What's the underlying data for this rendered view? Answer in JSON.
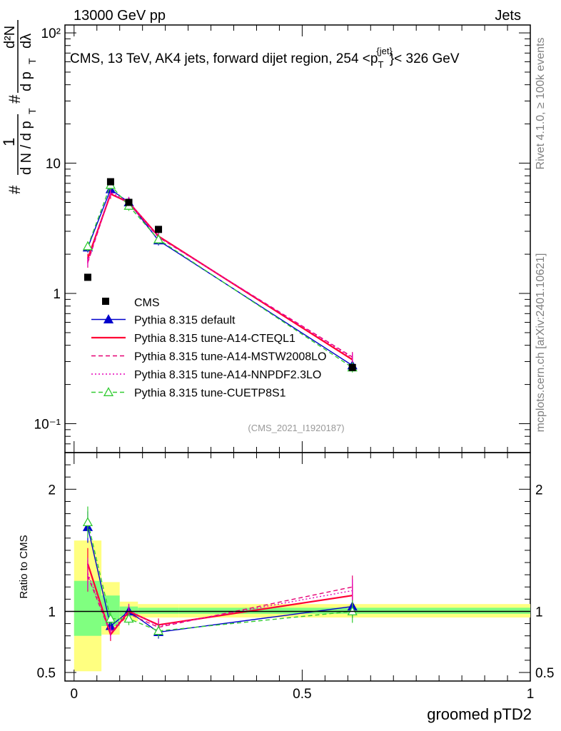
{
  "header": {
    "left": "13000 GeV pp",
    "right": "Jets"
  },
  "side_labels": {
    "rivet": "Rivet 4.1.0, ≥ 100k events",
    "mcplots": "mcplots.cern.ch [arXiv:2401.10621]"
  },
  "colors": {
    "cms": "#000000",
    "default": "#0000cc",
    "a14_cteq": "#ff0033",
    "a14_mstw": "#e60073",
    "a14_nnpdf": "#e600b8",
    "cuetp8s1": "#33cc33",
    "band_yellow": "#ffff80",
    "band_green": "#80ff80"
  },
  "chart_data": {
    "type": "line",
    "title": "CMS, 13 TeV, AK4 jets, forward dijet region, 254 <p_T^{jet}< 326 GeV",
    "title_parts": {
      "main": "CMS, 13 TeV, AK4 jets, forward dijet region, 254 <p",
      "sub": "T",
      "sup": "{jet}",
      "tail": "}< 326 GeV"
    },
    "ylabel_parts": {
      "hash1": "#",
      "one": "1",
      "dN_dpT": "d N / d p",
      "T": "T",
      "hash2": "#",
      "d2N": "d²N",
      "dpT_dlambda": "d p",
      "lambda": "dλ"
    },
    "xlabel": "groomed pTD2",
    "ratio_ylabel": "Ratio to CMS",
    "analysis_tag": "(CMS_2021_I1920187)",
    "xlim": [
      -0.02,
      1.0
    ],
    "ylim_log": [
      0.06,
      115
    ],
    "ratio_ylim": [
      0.43,
      2.3
    ],
    "x_ticks": [
      0,
      0.5,
      1
    ],
    "x_tick_labels": [
      "0",
      "0.5",
      "1"
    ],
    "y_ticks": [
      0.1,
      1,
      10,
      100
    ],
    "y_tick_labels": [
      "10⁻¹",
      "1",
      "10",
      "10²"
    ],
    "ratio_ticks": [
      0.5,
      1,
      2
    ],
    "ratio_tick_labels": [
      "0.5",
      "1",
      "2"
    ],
    "bins": [
      {
        "lo": 0.0,
        "hi": 0.06,
        "x": 0.03
      },
      {
        "lo": 0.06,
        "hi": 0.1,
        "x": 0.08
      },
      {
        "lo": 0.1,
        "hi": 0.14,
        "x": 0.12
      },
      {
        "lo": 0.14,
        "hi": 0.23,
        "x": 0.185
      },
      {
        "lo": 0.23,
        "hi": 1.0,
        "x": 0.61
      }
    ],
    "data": {
      "name": "CMS",
      "values": [
        1.33,
        7.2,
        5.0,
        3.1,
        0.27
      ]
    },
    "ratio_band_total": [
      [
        0.51,
        1.58
      ],
      [
        0.81,
        1.24
      ],
      [
        0.92,
        1.08
      ],
      [
        0.95,
        1.06
      ],
      [
        0.95,
        1.06
      ]
    ],
    "ratio_band_stat": [
      [
        0.8,
        1.25
      ],
      [
        0.88,
        1.13
      ],
      [
        0.96,
        1.04
      ],
      [
        0.98,
        1.03
      ],
      [
        0.98,
        1.03
      ]
    ],
    "series": [
      {
        "name": "Pythia 8.315 default",
        "key": "default",
        "values": [
          2.25,
          6.3,
          5.0,
          2.55,
          0.28
        ],
        "ratio": [
          1.69,
          0.88,
          1.0,
          0.83,
          1.04
        ],
        "marker": "triangle-filled",
        "dash": "solid"
      },
      {
        "name": "Pythia 8.315 tune-A14-CTEQL1",
        "key": "a14_cteq",
        "values": [
          1.85,
          5.8,
          5.0,
          2.75,
          0.31
        ],
        "ratio": [
          1.39,
          0.81,
          1.0,
          0.89,
          1.13
        ],
        "marker": "none",
        "dash": "solid"
      },
      {
        "name": "Pythia 8.315 tune-A14-MSTW2008LO",
        "key": "a14_mstw",
        "values": [
          1.72,
          5.9,
          4.9,
          2.7,
          0.325
        ],
        "ratio": [
          1.29,
          0.82,
          0.98,
          0.87,
          1.2
        ],
        "marker": "none",
        "dash": "dashed"
      },
      {
        "name": "Pythia 8.315 tune-A14-NNPDF2.3LO",
        "key": "a14_nnpdf",
        "values": [
          1.75,
          6.0,
          5.05,
          2.72,
          0.32
        ],
        "ratio": [
          1.31,
          0.83,
          1.01,
          0.88,
          1.17
        ],
        "marker": "none",
        "dash": "dotted"
      },
      {
        "name": "Pythia 8.315 tune-CUETP8S1",
        "key": "cuetp8s1",
        "values": [
          2.3,
          6.8,
          4.7,
          2.6,
          0.27
        ],
        "ratio": [
          1.73,
          0.94,
          0.94,
          0.84,
          1.0
        ],
        "marker": "triangle-open",
        "dash": "dashed"
      }
    ]
  }
}
